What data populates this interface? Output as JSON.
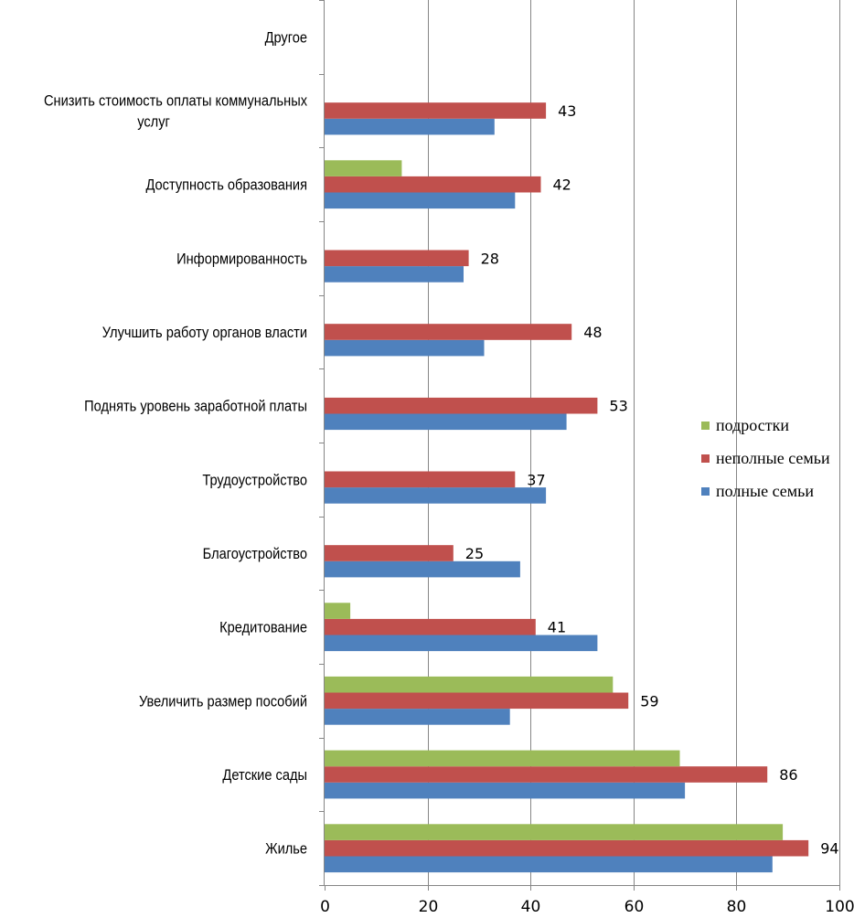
{
  "chart_data": {
    "type": "bar",
    "orientation": "horizontal",
    "title": "",
    "xlabel": "",
    "ylabel": "",
    "xlim": [
      0,
      100
    ],
    "x_ticks": [
      0,
      20,
      40,
      60,
      80,
      100
    ],
    "grid": "vertical",
    "legend_position": "right",
    "categories": [
      "Жилье",
      "Детские сады",
      "Увеличить размер пособий",
      "Кредитование",
      "Благоустройство",
      "Трудоустройство",
      "Поднять уровень заработной платы",
      "Улучшить работу органов власти",
      "Информированность",
      "Доступность образования",
      "Снизить стоимость оплаты коммунальных услуг",
      "Другое"
    ],
    "category_label_lines": [
      [
        "Жилье"
      ],
      [
        "Детские сады"
      ],
      [
        "Увеличить размер пособий"
      ],
      [
        "Кредитование"
      ],
      [
        "Благоустройство"
      ],
      [
        "Трудоустройство"
      ],
      [
        "Поднять уровень заработной платы"
      ],
      [
        "Улучшить работу органов власти"
      ],
      [
        "Информированность"
      ],
      [
        "Доступность образования"
      ],
      [
        "Снизить стоимость оплаты коммунальных",
        "услуг"
      ],
      [
        "Другое"
      ]
    ],
    "series": [
      {
        "name": "полные семьи",
        "color": "#4f81bd",
        "values": [
          87,
          70,
          36,
          53,
          38,
          43,
          47,
          31,
          27,
          37,
          33,
          0
        ],
        "labeled": false
      },
      {
        "name": "неполные семьи",
        "color": "#c0504d",
        "values": [
          94,
          86,
          59,
          41,
          25,
          37,
          53,
          48,
          28,
          42,
          43,
          0
        ],
        "labeled": true
      },
      {
        "name": "подростки",
        "color": "#9bbb59",
        "values": [
          89,
          69,
          56,
          5,
          0,
          0,
          0,
          0,
          0,
          15,
          0,
          0
        ],
        "labeled": false
      }
    ],
    "legend_order": [
      "подростки",
      "неполные семьи",
      "полные семьи"
    ]
  }
}
